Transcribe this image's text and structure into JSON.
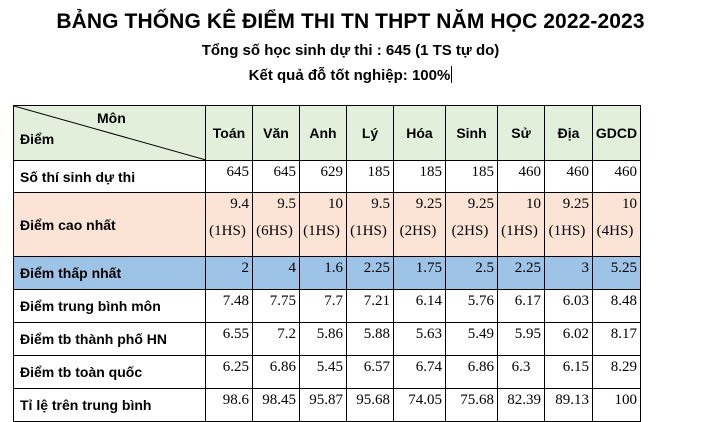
{
  "header": {
    "title": "BẢNG THỐNG KÊ ĐIỂM THI TN THPT NĂM HỌC 2022-2023",
    "subtitle_1": "Tổng số học sinh dự thi : 645 (1 TS tự do)",
    "subtitle_2": "Kết quả đỗ tốt nghiệp: 100%"
  },
  "table": {
    "corner_subject": "Môn",
    "corner_score": "Điểm",
    "subjects": [
      "Toán",
      "Văn",
      "Anh",
      "Lý",
      "Hóa",
      "Sinh",
      "Sử",
      "Địa",
      "GDCD"
    ],
    "rows": [
      {
        "label": "Số thí sinh dự thi",
        "values": [
          "645",
          "645",
          "629",
          "185",
          "185",
          "185",
          "460",
          "460",
          "460"
        ]
      },
      {
        "label": "Điểm cao nhất",
        "values": [
          "9.4",
          "9.5",
          "10",
          "9.5",
          "9.25",
          "9.25",
          "10",
          "9.25",
          "10"
        ],
        "notes": [
          "(1HS)",
          "(6HS)",
          "(1HS)",
          "(1HS)",
          "(2HS)",
          "(2HS)",
          "(1HS)",
          "(1HS)",
          "(4HS)"
        ]
      },
      {
        "label": "Điểm thấp nhất",
        "values": [
          "2",
          "4",
          "1.6",
          "2.25",
          "1.75",
          "2.5",
          "2.25",
          "3",
          "5.25"
        ]
      },
      {
        "label": "Điểm trung bình môn",
        "values": [
          "7.48",
          "7.75",
          "7.7",
          "7.21",
          "6.14",
          "5.76",
          "6.17",
          "6.03",
          "8.48"
        ]
      },
      {
        "label": "Điểm tb thành phố HN",
        "values": [
          "6.55",
          "7.2",
          "5.86",
          "5.88",
          "5.63",
          "5.49",
          "5.95",
          "6.02",
          "8.17"
        ]
      },
      {
        "label": "Điểm tb toàn quốc",
        "values": [
          "6.25",
          "6.86",
          "5.45",
          "6.57",
          "6.74",
          "6.86",
          "6.3",
          "6.15",
          "8.29"
        ]
      },
      {
        "label": "Tỉ lệ trên trung bình",
        "values": [
          "98.6",
          "98.45",
          "95.87",
          "95.68",
          "74.05",
          "75.68",
          "82.39",
          "89.13",
          "100"
        ]
      }
    ]
  },
  "colors": {
    "header_row": "#e2efda",
    "max_score_row": "#fbe4d6",
    "min_score_row": "#9dc3e6"
  }
}
